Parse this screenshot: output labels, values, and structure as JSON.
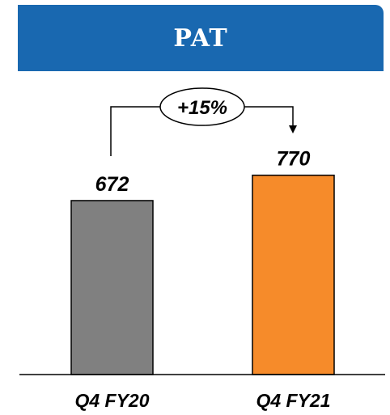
{
  "header": {
    "title": "PAT"
  },
  "chart_data": {
    "type": "bar",
    "categories": [
      "Q4 FY20",
      "Q4 FY21"
    ],
    "values": [
      672,
      770
    ],
    "colors": [
      "#808080",
      "#f68b2a"
    ],
    "annotation": "+15%",
    "title": "PAT",
    "ylim": [
      0,
      1000
    ]
  }
}
